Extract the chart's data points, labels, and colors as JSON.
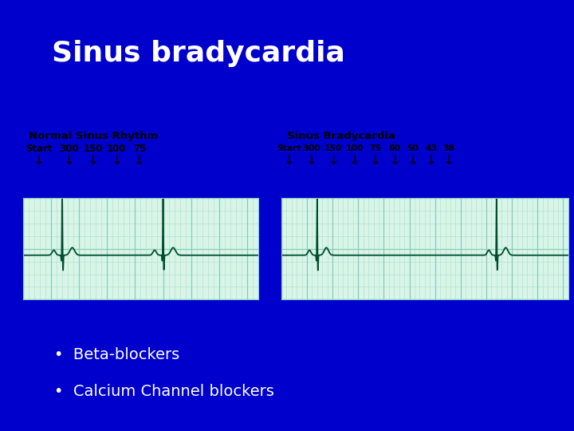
{
  "title": "Sinus bradycardia",
  "title_color": "#FFFFFF",
  "title_fontsize": 26,
  "bg_color": "#0000CC",
  "bg_top_color": "#00008B",
  "ecg_bg_color": "#d8f5e8",
  "ecg_line_color": "#004d30",
  "grid_color_minor": "#aaddcc",
  "grid_color_major": "#88ccbb",
  "label1": "Normal Sinus Rhythm",
  "label2": "Sinus Bradycardia",
  "nsr_labels": [
    "Start",
    "300",
    "150",
    "100",
    "75"
  ],
  "sb_labels": [
    "Start",
    "300",
    "150",
    "100",
    "75",
    "60",
    "50",
    "43",
    "38"
  ],
  "bullet_items": [
    "Beta-blockers",
    "Calcium Channel blockers"
  ],
  "bullet_color": "#FFFFFF",
  "bullet_fontsize": 14,
  "white_panel_color": "#F0F0F0",
  "accent_line_color": "#7799CC"
}
